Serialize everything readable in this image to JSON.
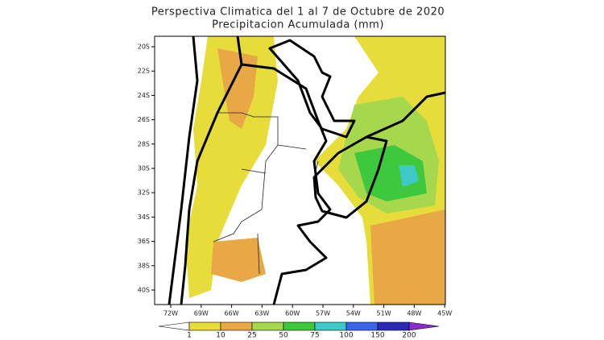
{
  "header": {
    "title": "Perspectiva Climatica del 1 al 7 de Octubre de 2020",
    "subtitle": "Precipitacion Acumulada (mm)"
  },
  "map": {
    "lat_labels": [
      "20S",
      "22S",
      "24S",
      "26S",
      "28S",
      "30S",
      "32S",
      "34S",
      "36S",
      "38S",
      "40S"
    ],
    "lon_labels": [
      "72W",
      "69W",
      "66W",
      "63W",
      "60W",
      "57W",
      "54W",
      "51W",
      "48W",
      "45W"
    ]
  },
  "colorbar": {
    "levels": [
      1,
      10,
      25,
      50,
      75,
      100,
      150,
      200
    ],
    "colors": [
      "#ffffff",
      "#e6dc3a",
      "#e8a845",
      "#a6d84e",
      "#3ec83e",
      "#3ec8c8",
      "#3c64e8",
      "#2a2ab4",
      "#8c28d0"
    ]
  }
}
